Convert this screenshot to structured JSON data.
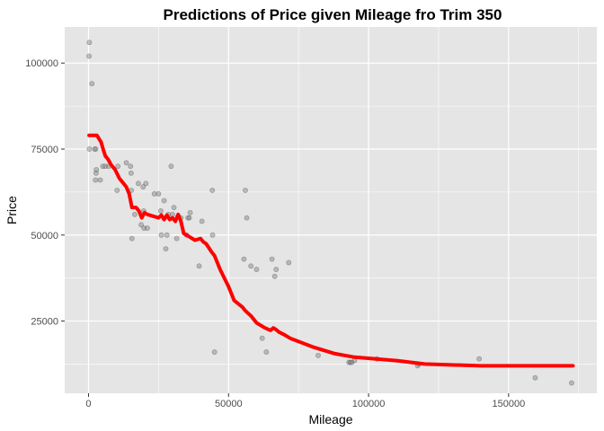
{
  "chart_data": {
    "type": "scatter",
    "title": "Predictions of Price given Mileage fro Trim 350",
    "xlabel": "Mileage",
    "ylabel": "Price",
    "xlim": [
      -8500,
      181500
    ],
    "ylim": [
      4000,
      110500
    ],
    "x_ticks": [
      0,
      50000,
      100000,
      150000
    ],
    "x_tick_labels": [
      "0",
      "50000",
      "100000",
      "150000"
    ],
    "y_ticks": [
      25000,
      50000,
      75000,
      100000
    ],
    "y_tick_labels": [
      "25000",
      "50000",
      "75000",
      "100000"
    ],
    "grid": true,
    "colors": {
      "panel": "#e5e5e5",
      "grid": "#ffffff",
      "points": "#7f7f7f",
      "line": "#ff0000"
    },
    "points": [
      {
        "x": 300,
        "y": 106000
      },
      {
        "x": 200,
        "y": 102000
      },
      {
        "x": 1200,
        "y": 94000
      },
      {
        "x": 300,
        "y": 75000
      },
      {
        "x": 2200,
        "y": 75000
      },
      {
        "x": 2600,
        "y": 75000
      },
      {
        "x": 2800,
        "y": 69000
      },
      {
        "x": 2700,
        "y": 68000
      },
      {
        "x": 2500,
        "y": 66000
      },
      {
        "x": 4200,
        "y": 66000
      },
      {
        "x": 5100,
        "y": 70000
      },
      {
        "x": 6000,
        "y": 70000
      },
      {
        "x": 7200,
        "y": 70000
      },
      {
        "x": 10500,
        "y": 70000
      },
      {
        "x": 10200,
        "y": 63000
      },
      {
        "x": 13500,
        "y": 71000
      },
      {
        "x": 15000,
        "y": 70000
      },
      {
        "x": 15200,
        "y": 68000
      },
      {
        "x": 15300,
        "y": 63000
      },
      {
        "x": 15500,
        "y": 49000
      },
      {
        "x": 16500,
        "y": 56000
      },
      {
        "x": 17800,
        "y": 65000
      },
      {
        "x": 18800,
        "y": 53000
      },
      {
        "x": 19800,
        "y": 52000
      },
      {
        "x": 19500,
        "y": 64000
      },
      {
        "x": 19700,
        "y": 57000
      },
      {
        "x": 21000,
        "y": 52000
      },
      {
        "x": 20500,
        "y": 65000
      },
      {
        "x": 23500,
        "y": 62000
      },
      {
        "x": 25000,
        "y": 62000
      },
      {
        "x": 25800,
        "y": 57000
      },
      {
        "x": 26000,
        "y": 50000
      },
      {
        "x": 27000,
        "y": 60000
      },
      {
        "x": 27600,
        "y": 46000
      },
      {
        "x": 28000,
        "y": 50000
      },
      {
        "x": 28500,
        "y": 56000
      },
      {
        "x": 29500,
        "y": 70000
      },
      {
        "x": 30000,
        "y": 56000
      },
      {
        "x": 30500,
        "y": 58000
      },
      {
        "x": 31500,
        "y": 49000
      },
      {
        "x": 33000,
        "y": 55000
      },
      {
        "x": 35000,
        "y": 50000
      },
      {
        "x": 35500,
        "y": 55000
      },
      {
        "x": 36000,
        "y": 55000
      },
      {
        "x": 36300,
        "y": 56500
      },
      {
        "x": 39500,
        "y": 41000
      },
      {
        "x": 40500,
        "y": 54000
      },
      {
        "x": 44200,
        "y": 63000
      },
      {
        "x": 44300,
        "y": 50000
      },
      {
        "x": 45000,
        "y": 16000
      },
      {
        "x": 55500,
        "y": 43000
      },
      {
        "x": 56000,
        "y": 63000
      },
      {
        "x": 56500,
        "y": 55000
      },
      {
        "x": 58000,
        "y": 41000
      },
      {
        "x": 60000,
        "y": 40000
      },
      {
        "x": 62000,
        "y": 20000
      },
      {
        "x": 63500,
        "y": 16000
      },
      {
        "x": 65500,
        "y": 43000
      },
      {
        "x": 66500,
        "y": 38000
      },
      {
        "x": 67000,
        "y": 40000
      },
      {
        "x": 71500,
        "y": 42000
      },
      {
        "x": 82000,
        "y": 15000
      },
      {
        "x": 93000,
        "y": 13000
      },
      {
        "x": 93500,
        "y": 13000
      },
      {
        "x": 94000,
        "y": 13000
      },
      {
        "x": 95000,
        "y": 13500
      },
      {
        "x": 103000,
        "y": 14000
      },
      {
        "x": 117500,
        "y": 12000
      },
      {
        "x": 118000,
        "y": 12500
      },
      {
        "x": 139500,
        "y": 14000
      },
      {
        "x": 159500,
        "y": 8500
      },
      {
        "x": 172500,
        "y": 7000
      }
    ],
    "series": [
      {
        "type": "line",
        "x": [
          200,
          3000,
          4500,
          5200,
          6000,
          7000,
          8000,
          9500,
          11000,
          12500,
          13500,
          14500,
          15500,
          17000,
          18000,
          19000,
          20000,
          21000,
          23000,
          25000,
          26000,
          27000,
          28000,
          29000,
          30000,
          31000,
          32000,
          33000,
          34000,
          36000,
          38000,
          40000,
          41000,
          42000,
          44000,
          45000,
          47000,
          50000,
          52000,
          55000,
          56000,
          58000,
          60000,
          61000,
          63000,
          65000,
          66000,
          67000,
          68000,
          70000,
          72000,
          80000,
          88000,
          95000,
          110000,
          120000,
          140000,
          160000,
          173000
        ],
        "y": [
          79000,
          79000,
          77000,
          75000,
          73000,
          72000,
          70500,
          69000,
          66500,
          65000,
          64000,
          62000,
          58000,
          58000,
          57000,
          55000,
          56500,
          56000,
          55500,
          55000,
          55800,
          54500,
          55800,
          54500,
          55000,
          54000,
          56000,
          54000,
          50500,
          49500,
          48500,
          49000,
          48000,
          47500,
          45000,
          44000,
          40000,
          35000,
          31000,
          29000,
          28000,
          26500,
          24500,
          24000,
          23000,
          22300,
          23000,
          22500,
          21800,
          21000,
          20000,
          17500,
          15500,
          14500,
          13500,
          12500,
          12000,
          12000,
          12000
        ]
      }
    ]
  }
}
